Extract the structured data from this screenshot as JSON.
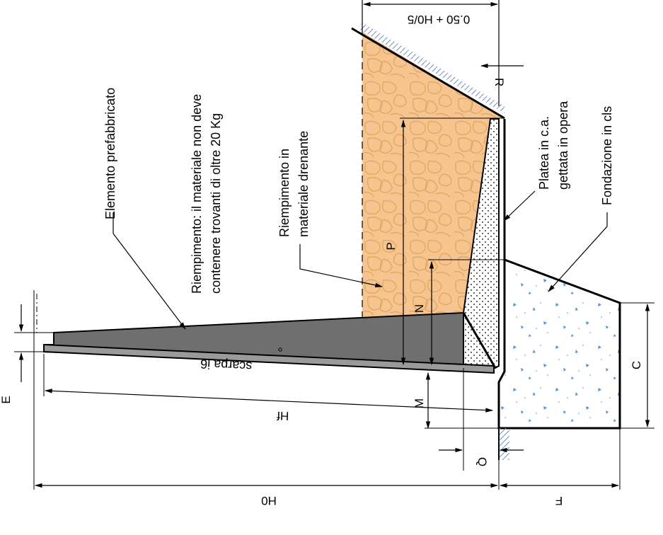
{
  "labels": {
    "elemento": "Elemento prefabbricato",
    "riempimento_line1": "Riempimento: il materiale non deve",
    "riempimento_line2": "contenere trovanti di oltre 20 Kg",
    "drenante_line1": "Riempimento in",
    "drenante_line2": "materiale drenante",
    "platea_line1": "Platea in c.a.",
    "platea_line2": "gettata in opera",
    "fondazione": "Fondazione in cls",
    "scarpa": "scarpa i6"
  },
  "dimensions": {
    "top": "0.50 + H0/5",
    "R": "R",
    "P": "P",
    "N": "N",
    "M": "M",
    "Hf": "Hf",
    "H0": "H0",
    "E": "E",
    "C": "C",
    "Q": "Q",
    "F": "F"
  },
  "colors": {
    "fill_orange": "#f6c48e",
    "stone_outline": "#e2a35c",
    "precast": "#6f6f6f",
    "precast_dark": "#555555",
    "concrete_spark": "#5b8fe0",
    "stroke": "#000000"
  }
}
